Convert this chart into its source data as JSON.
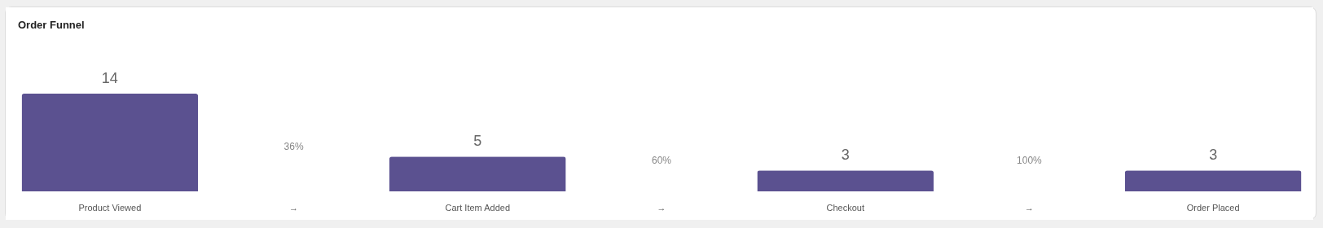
{
  "chart_data": {
    "type": "bar",
    "title": "Order Funnel",
    "categories": [
      "Product Viewed",
      "→",
      "Cart Item Added",
      "→",
      "Checkout",
      "→",
      "Order Placed"
    ],
    "values": [
      14,
      null,
      5,
      null,
      3,
      null,
      3
    ],
    "color": "#5b5190",
    "data_labels": true,
    "annotations": [
      "36%",
      "60%",
      "100%"
    ]
  }
}
